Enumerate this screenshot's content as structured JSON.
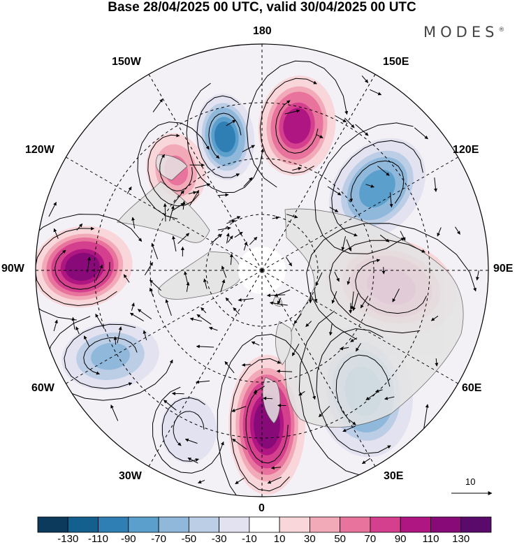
{
  "title": "Base 28/04/2025 00 UTC, valid 30/04/2025 00 UTC",
  "brand": {
    "name": "MODES",
    "mark": "®"
  },
  "longitude_labels": {
    "lon_180": "180",
    "lon_150e": "150E",
    "lon_120e": "120E",
    "lon_90e": "90E",
    "lon_60e": "60E",
    "lon_30e": "30E",
    "lon_0": "0",
    "lon_30w": "30W",
    "lon_60w": "60W",
    "lon_90w": "90W",
    "lon_120w": "120W",
    "lon_150w": "150W"
  },
  "reference_vector": {
    "value": "10"
  },
  "colorbar": {
    "labels": [
      "-130",
      "-110",
      "-90",
      "-70",
      "-50",
      "-30",
      "-10",
      "10",
      "30",
      "50",
      "70",
      "90",
      "110",
      "130"
    ],
    "colors": [
      "#0c3a5c",
      "#135f8e",
      "#2f7fb5",
      "#5b9fcc",
      "#8fb8db",
      "#bccde6",
      "#e2e2f0",
      "#ffffff",
      "#f8d6da",
      "#f2a9b8",
      "#e8749d",
      "#d43f8e",
      "#b01681",
      "#870a78",
      "#5a0a6b"
    ]
  },
  "map": {
    "projection": "north polar stereographic",
    "land_color": "#e4e4e4",
    "coast_color": "#555555",
    "anomaly_centres": [
      {
        "sign": "positive",
        "value": 130,
        "near": "90W"
      },
      {
        "sign": "positive",
        "value": 110,
        "near": "180"
      },
      {
        "sign": "negative",
        "value": -110,
        "near": "150W"
      },
      {
        "sign": "positive",
        "value": 70,
        "near": "120W"
      },
      {
        "sign": "negative",
        "value": -90,
        "near": "120E"
      },
      {
        "sign": "positive",
        "value": 90,
        "near": "90E"
      },
      {
        "sign": "negative",
        "value": -90,
        "near": "30E-60E"
      },
      {
        "sign": "positive",
        "value": 130,
        "near": "0"
      },
      {
        "sign": "negative",
        "value": -70,
        "near": "60W"
      },
      {
        "sign": "negative",
        "value": -30,
        "near": "30W"
      }
    ]
  }
}
